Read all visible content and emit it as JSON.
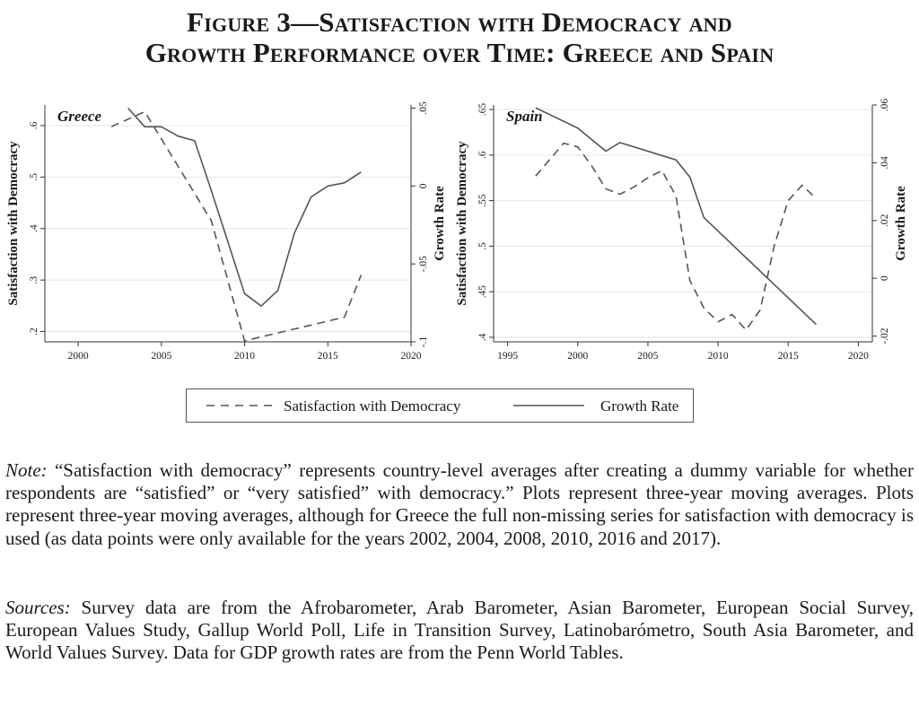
{
  "title": {
    "line1": "Figure 3—Satisfaction with Democracy and",
    "line2": "Growth Performance over Time: Greece and Spain"
  },
  "colors": {
    "line": "#555555",
    "axis": "#333333",
    "grid": "#e6e6e6",
    "text": "#1a1a1a"
  },
  "legend": {
    "satisfaction_label": "Satisfaction with Democracy",
    "growth_label": "Growth Rate"
  },
  "note": {
    "lead": "Note:",
    "text": "“Satisfaction with democracy” represents country-level averages after creating a dummy variable for whether respondents are “satisfied” or “very satisfied” with democracy.” Plots represent three-year moving averages. Plots represent three-year moving averages, although for Greece the full non-missing series for satisfaction with democracy is used (as data points were only available for the years 2002, 2004, 2008, 2010, 2016 and 2017)."
  },
  "sources": {
    "lead": "Sources:",
    "text": "Survey data are from the Afrobarometer, Arab Barometer, Asian Barometer, European Social Survey, European Values Study, Gallup World Poll, Life in Transition Survey, Latinobarómetro, South Asia Barometer, and World Values Survey. Data for GDP growth rates are from the Penn World Tables."
  },
  "chart_data": [
    {
      "type": "line",
      "panel_label": "Greece",
      "xlabel": "",
      "ylabel_left": "Satisfaction with Democracy",
      "ylabel_right": "Growth Rate",
      "xlim": [
        1998,
        2020
      ],
      "x_ticks": [
        2000,
        2005,
        2010,
        2015,
        2020
      ],
      "ylim_left": [
        0.18,
        0.64
      ],
      "y_ticks_left": [
        0.2,
        0.3,
        0.4,
        0.5,
        0.6
      ],
      "y_tick_labels_left": [
        ".2",
        ".3",
        ".4",
        ".5",
        ".6"
      ],
      "ylim_right": [
        -0.1,
        0.052
      ],
      "y_ticks_right": [
        -0.1,
        -0.05,
        0,
        0.05
      ],
      "y_tick_labels_right": [
        "-.1",
        "-.05",
        "0",
        ".05"
      ],
      "grid": true,
      "series": [
        {
          "name": "Satisfaction with Democracy",
          "axis": "left",
          "style": "dashed",
          "x": [
            2002,
            2004,
            2008,
            2010,
            2016,
            2017
          ],
          "y": [
            0.598,
            0.627,
            0.415,
            0.182,
            0.228,
            0.31
          ]
        },
        {
          "name": "Growth Rate",
          "axis": "right",
          "style": "solid",
          "x": [
            2003,
            2004,
            2005,
            2006,
            2007,
            2008,
            2009,
            2010,
            2011,
            2012,
            2013,
            2014,
            2015,
            2016,
            2017
          ],
          "y": [
            0.05,
            0.038,
            0.038,
            0.032,
            0.029,
            -0.003,
            -0.036,
            -0.069,
            -0.077,
            -0.067,
            -0.03,
            -0.007,
            0,
            0.002,
            0.009
          ]
        }
      ]
    },
    {
      "type": "line",
      "panel_label": "Spain",
      "xlabel": "",
      "ylabel_left": "Satisfaction with Democracy",
      "ylabel_right": "Growth Rate",
      "xlim": [
        1994,
        2021
      ],
      "x_ticks": [
        1995,
        2000,
        2005,
        2010,
        2015,
        2020
      ],
      "ylim_left": [
        0.395,
        0.655
      ],
      "y_ticks_left": [
        0.4,
        0.45,
        0.5,
        0.55,
        0.6,
        0.65
      ],
      "y_tick_labels_left": [
        ".4",
        ".45",
        ".5",
        ".55",
        ".6",
        ".65"
      ],
      "ylim_right": [
        -0.022,
        0.06
      ],
      "y_ticks_right": [
        -0.02,
        0,
        0.02,
        0.04,
        0.06
      ],
      "y_tick_labels_right": [
        "-.02",
        "0",
        ".02",
        ".04",
        ".06"
      ],
      "grid": true,
      "series": [
        {
          "name": "Satisfaction with Democracy",
          "axis": "left",
          "style": "dashed",
          "x": [
            1997,
            1998,
            1999,
            2000,
            2001,
            2002,
            2003,
            2004,
            2005,
            2006,
            2007,
            2008,
            2009,
            2010,
            2011,
            2012,
            2013,
            2014,
            2015,
            2016,
            2017
          ],
          "y": [
            0.577,
            0.595,
            0.613,
            0.609,
            0.588,
            0.563,
            0.557,
            0.565,
            0.575,
            0.583,
            0.555,
            0.462,
            0.432,
            0.417,
            0.425,
            0.408,
            0.43,
            0.5,
            0.55,
            0.567,
            0.552
          ]
        },
        {
          "name": "Growth Rate",
          "axis": "right",
          "style": "solid",
          "x": [
            1997,
            2000,
            2002,
            2003,
            2007,
            2008,
            2009,
            2017
          ],
          "y": [
            0.059,
            0.052,
            0.044,
            0.047,
            0.041,
            0.035,
            0.021,
            -0.016
          ]
        }
      ]
    }
  ]
}
